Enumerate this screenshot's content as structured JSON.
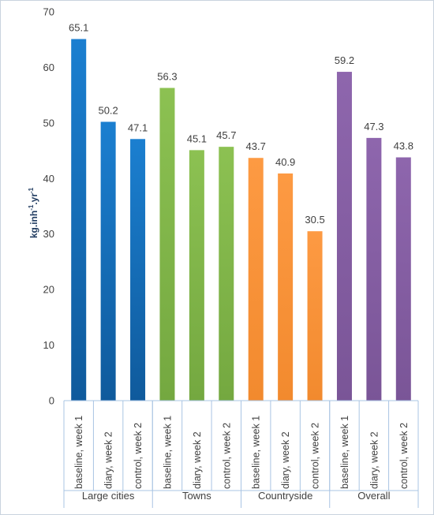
{
  "chart_data": {
    "type": "bar",
    "title": "",
    "xlabel": "",
    "ylabel": {
      "base": "kg.inh",
      "sup1": "-1",
      "mid": ".yr",
      "sup2": "-1"
    },
    "ylim": [
      0,
      70
    ],
    "yticks": [
      0,
      10,
      20,
      30,
      40,
      50,
      60,
      70
    ],
    "grid": false,
    "groups": [
      {
        "name": "Large cities",
        "color": "#1b7fd0",
        "color_dark": "#0f5a9c",
        "bars": [
          {
            "label": "baseline, week 1",
            "value": 65.1
          },
          {
            "label": "diary, week 2",
            "value": 50.2
          },
          {
            "label": "control, week 2",
            "value": 47.1
          }
        ]
      },
      {
        "name": "Towns",
        "color": "#8cc152",
        "color_dark": "#74a840",
        "bars": [
          {
            "label": "baseline, week 1",
            "value": 56.3
          },
          {
            "label": "diary, week 2",
            "value": 45.1
          },
          {
            "label": "control, week 2",
            "value": 45.7
          }
        ]
      },
      {
        "name": "Countryside",
        "color": "#fd9a43",
        "color_dark": "#f28a2e",
        "bars": [
          {
            "label": "baseline, week 1",
            "value": 43.7
          },
          {
            "label": "diary, week 2",
            "value": 40.9
          },
          {
            "label": "control, week 2",
            "value": 30.5
          }
        ]
      },
      {
        "name": "Overall",
        "color": "#8e66ad",
        "color_dark": "#7a5597",
        "bars": [
          {
            "label": "baseline, week 1",
            "value": 59.2
          },
          {
            "label": "diary, week 2",
            "value": 47.3
          },
          {
            "label": "control, week 2",
            "value": 43.8
          }
        ]
      }
    ],
    "axis_color": "#a9c4e3"
  }
}
